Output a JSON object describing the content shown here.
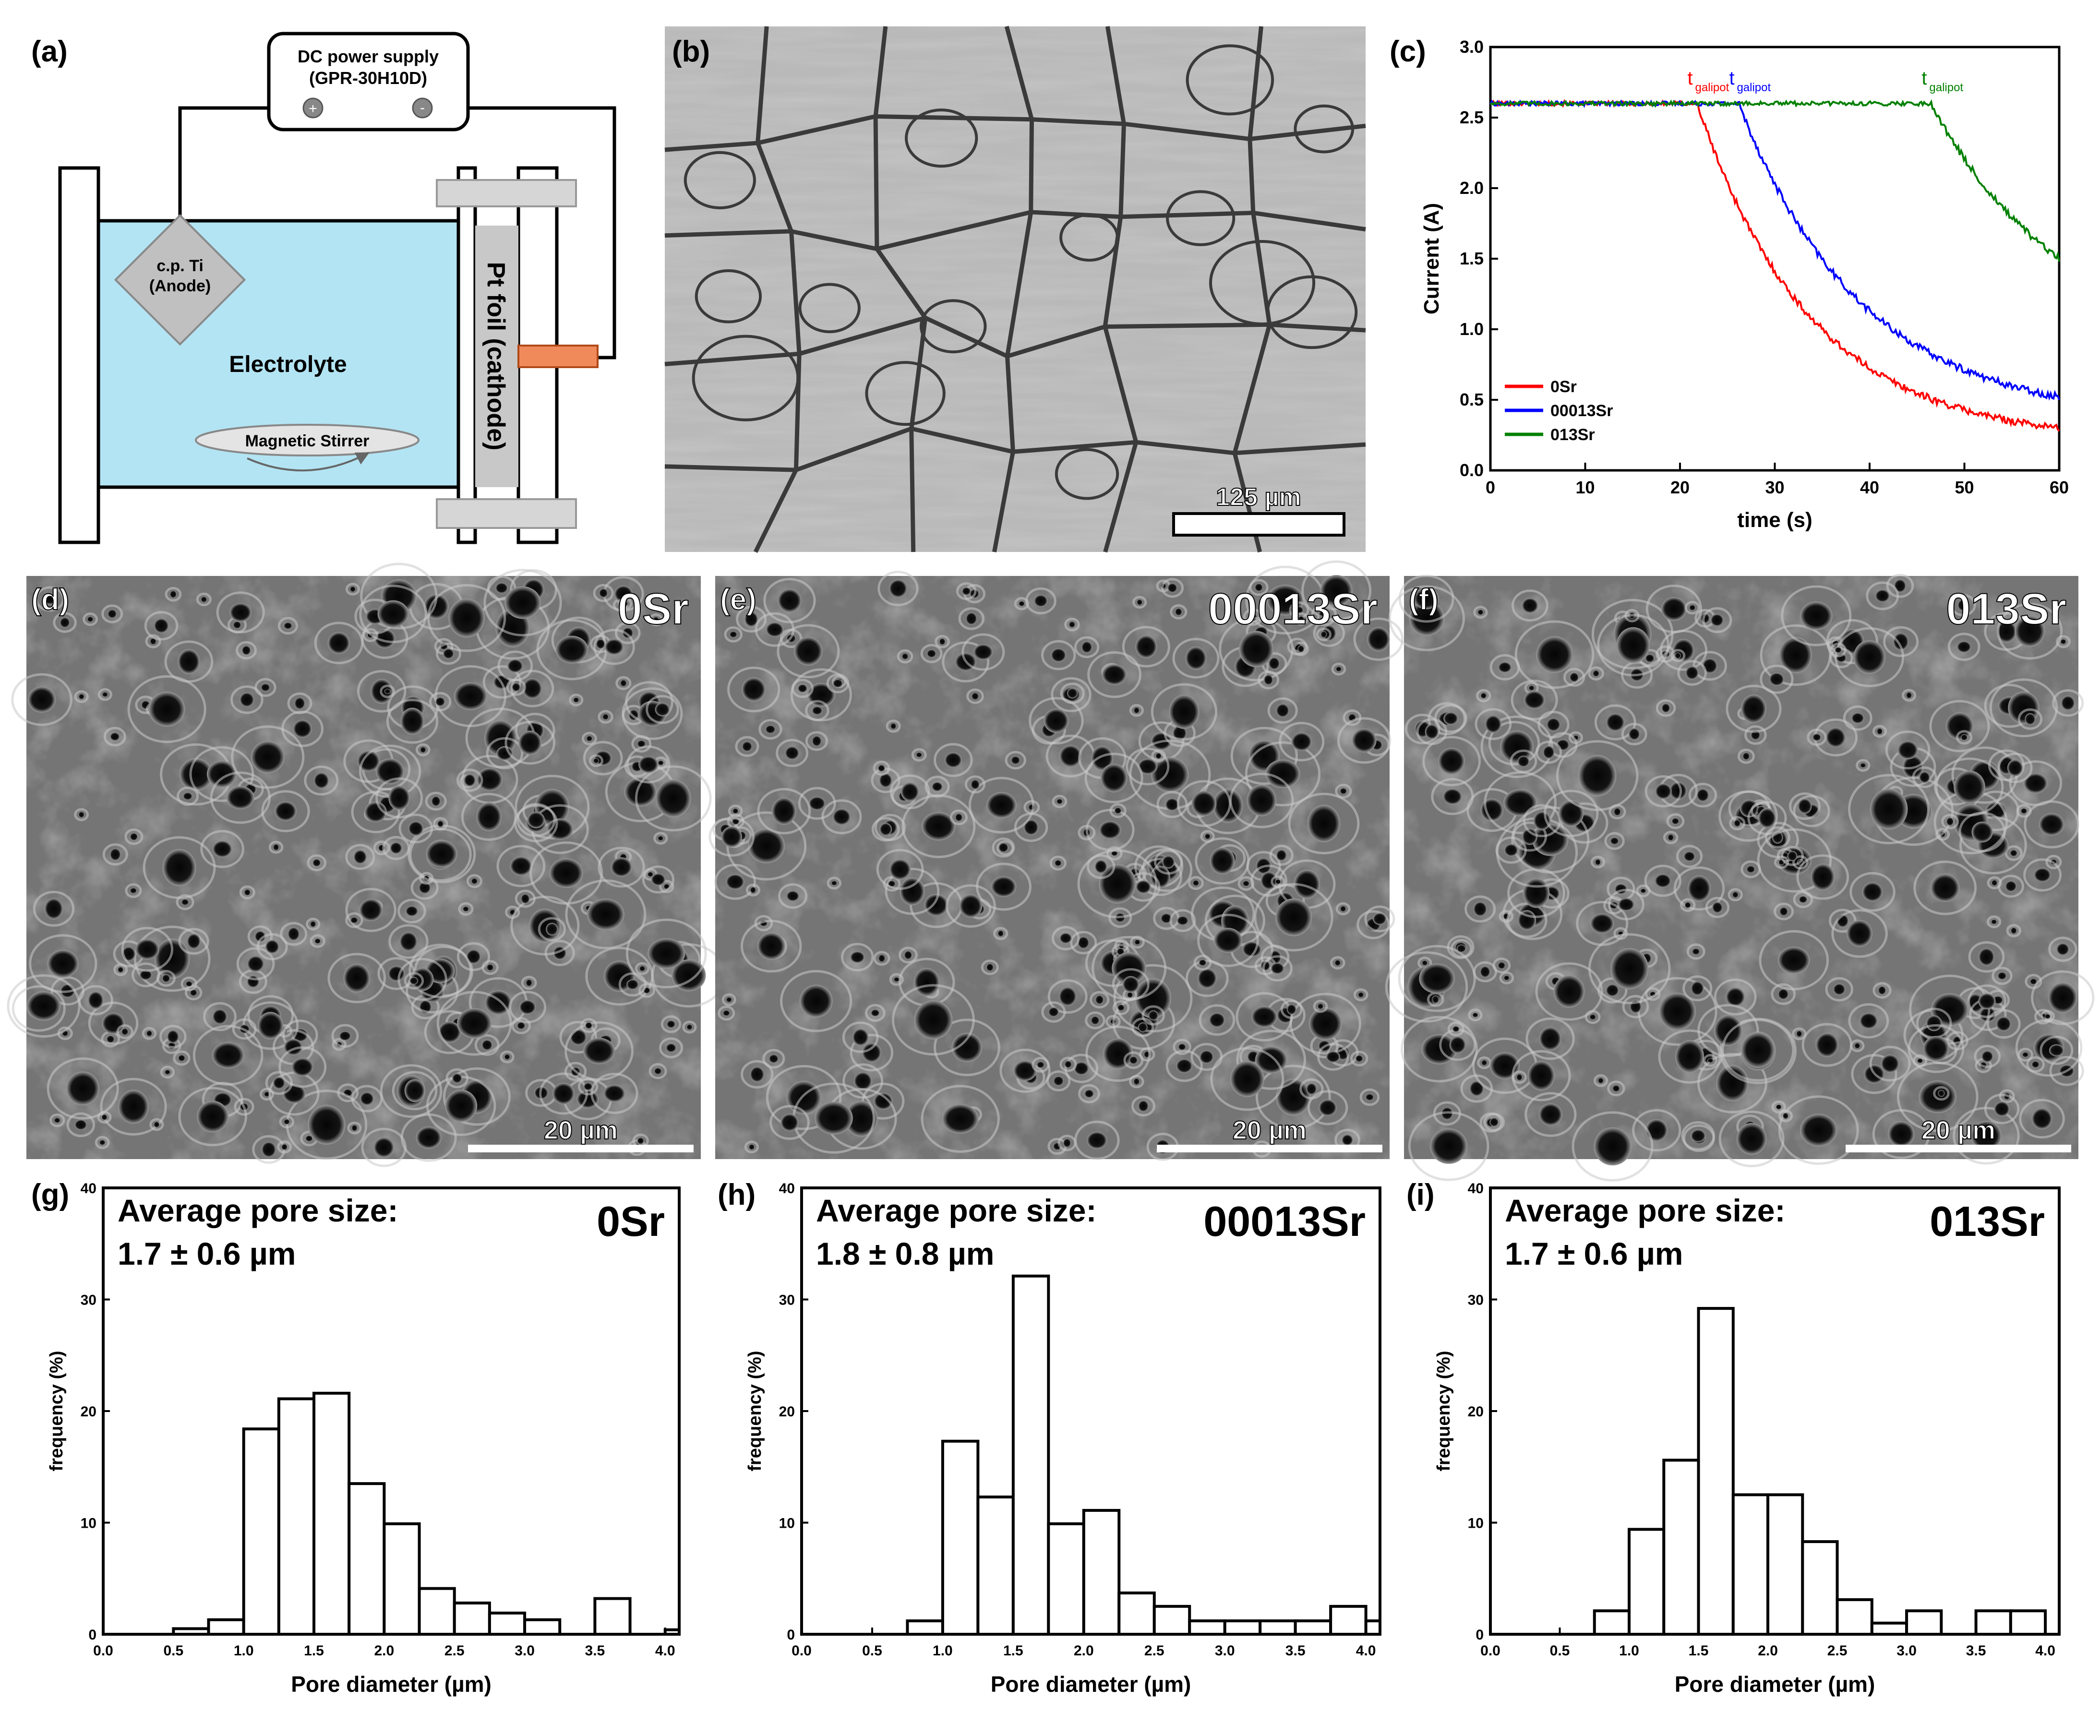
{
  "panel_labels": {
    "a": "(a)",
    "b": "(b)",
    "c": "(c)",
    "d": "(d)",
    "e": "(e)",
    "f": "(f)",
    "g": "(g)",
    "h": "(h)",
    "i": "(i)"
  },
  "setup": {
    "power_supply_line1": "DC power supply",
    "power_supply_line2": "(GPR-30H10D)",
    "plus_symbol": "+",
    "minus_symbol": "-",
    "anode_line1": "c.p. Ti",
    "anode_line2": "(Anode)",
    "electrolyte": "Electrolyte",
    "stirrer": "Magnetic Stirrer",
    "cathode": "Pt foil (cathode)",
    "colors": {
      "electrolyte": "#b3e4f3",
      "foil": "#c8c8c8",
      "connector": "#f08a5a"
    }
  },
  "micrograph": {
    "scale_bar": "125 µm"
  },
  "sem": [
    {
      "name": "0Sr",
      "scale_bar": "20 µm"
    },
    {
      "name": "00013Sr",
      "scale_bar": "20 µm"
    },
    {
      "name": "013Sr",
      "scale_bar": "20 µm"
    }
  ],
  "chart_data": [
    {
      "type": "line",
      "panel": "c",
      "xlabel": "time (s)",
      "ylabel": "Current (A)",
      "xlim": [
        0,
        60
      ],
      "ylim": [
        0,
        3.0
      ],
      "xticks": [
        0,
        10,
        20,
        30,
        40,
        50,
        60
      ],
      "yticks": [
        0.0,
        0.5,
        1.0,
        1.5,
        2.0,
        2.5,
        3.0
      ],
      "legend_position": "bottom-left",
      "annotation_main": "t",
      "annotation_sub": "galipot",
      "series": [
        {
          "name": "0Sr",
          "color": "#ff0000",
          "t_galipot": 21.8,
          "plateau": 2.6,
          "end_value": 0.3,
          "decay_tau": 12
        },
        {
          "name": "00013Sr",
          "color": "#0000ff",
          "t_galipot": 26.2,
          "plateau": 2.6,
          "end_value": 0.52,
          "decay_tau": 13
        },
        {
          "name": "013Sr",
          "color": "#008000",
          "t_galipot": 46.5,
          "plateau": 2.6,
          "end_value": 1.5,
          "decay_tau": 14
        }
      ]
    },
    {
      "type": "bar",
      "panel": "g",
      "sample": "0Sr",
      "title_line1": "Average pore size:",
      "title_line2": "1.7 ± 0.6 µm",
      "xlabel": "Pore diameter (µm)",
      "ylabel": "frequency (%)",
      "xlim": [
        0,
        4.1
      ],
      "ylim": [
        0,
        40
      ],
      "xticks": [
        "0.0",
        "0.5",
        "1.0",
        "1.5",
        "2.0",
        "2.5",
        "3.0",
        "3.5",
        "4.0"
      ],
      "yticks": [
        0,
        10,
        20,
        30,
        40
      ],
      "bin_width": 0.25,
      "bin_starts": [
        0.5,
        0.75,
        1.0,
        1.25,
        1.5,
        1.75,
        2.0,
        2.25,
        2.5,
        2.75,
        3.0,
        3.5,
        4.0
      ],
      "values": [
        0.5,
        1.3,
        18.4,
        21.1,
        21.6,
        13.5,
        9.9,
        4.1,
        2.8,
        1.9,
        1.3,
        3.2,
        0.4
      ]
    },
    {
      "type": "bar",
      "panel": "h",
      "sample": "00013Sr",
      "title_line1": "Average pore size:",
      "title_line2": "1.8 ± 0.8 µm",
      "xlabel": "Pore diameter (µm)",
      "ylabel": "frequency (%)",
      "xlim": [
        0,
        4.1
      ],
      "ylim": [
        0,
        40
      ],
      "xticks": [
        "0.0",
        "0.5",
        "1.0",
        "1.5",
        "2.0",
        "2.5",
        "3.0",
        "3.5",
        "4.0"
      ],
      "yticks": [
        0,
        10,
        20,
        30,
        40
      ],
      "bin_width": 0.25,
      "bin_starts": [
        0.75,
        1.0,
        1.25,
        1.5,
        1.75,
        2.0,
        2.25,
        2.5,
        2.75,
        3.0,
        3.25,
        3.5,
        3.75,
        4.0
      ],
      "values": [
        1.2,
        17.3,
        12.3,
        32.1,
        9.9,
        11.1,
        3.7,
        2.5,
        1.2,
        1.2,
        1.2,
        1.2,
        2.5,
        1.2
      ]
    },
    {
      "type": "bar",
      "panel": "i",
      "sample": "013Sr",
      "title_line1": "Average pore size:",
      "title_line2": "1.7 ± 0.6 µm",
      "xlabel": "Pore diameter (µm)",
      "ylabel": "frequency (%)",
      "xlim": [
        0,
        4.1
      ],
      "ylim": [
        0,
        40
      ],
      "xticks": [
        "0.0",
        "0.5",
        "1.0",
        "1.5",
        "2.0",
        "2.5",
        "3.0",
        "3.5",
        "4.0"
      ],
      "yticks": [
        0,
        10,
        20,
        30,
        40
      ],
      "bin_width": 0.25,
      "bin_starts": [
        0.75,
        1.0,
        1.25,
        1.5,
        1.75,
        2.0,
        2.25,
        2.5,
        2.75,
        3.0,
        3.5,
        3.75
      ],
      "values": [
        2.1,
        9.4,
        15.6,
        29.2,
        12.5,
        12.5,
        8.3,
        3.1,
        1.0,
        2.1,
        2.1,
        2.1
      ]
    }
  ]
}
